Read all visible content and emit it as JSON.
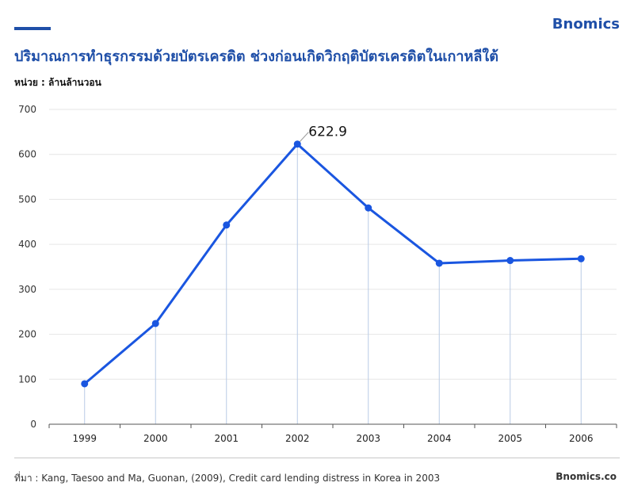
{
  "brand": "Bnomics",
  "title": "ปริมาณการทำธุรกรรมด้วยบัตรเครดิต ช่วงก่อนเกิดวิกฤติบัตรเครดิตในเกาหลีใต้",
  "unit_label": "หน่วย : ล้านล้านวอน",
  "source": "ที่มา : Kang, Taesoo and Ma, Guonan, (2009), Credit card lending distress in Korea in 2003",
  "site": "Bnomics.co",
  "colors": {
    "accent": "#1f4fa8",
    "line": "#1a56e0",
    "drop_line": "#b9cbe6",
    "grid": "#e6e6e6"
  },
  "chart_data": {
    "type": "line",
    "categories": [
      "1999",
      "2000",
      "2001",
      "2002",
      "2003",
      "2004",
      "2005",
      "2006"
    ],
    "values": [
      90,
      224,
      443,
      622.9,
      481,
      358,
      364,
      368
    ],
    "ylim": [
      0,
      700
    ],
    "yticks": [
      "0",
      "100",
      "200",
      "300",
      "400",
      "500",
      "600",
      "700"
    ],
    "grid": true,
    "annotations": [
      {
        "category": "2002",
        "label": "622.9"
      }
    ]
  }
}
